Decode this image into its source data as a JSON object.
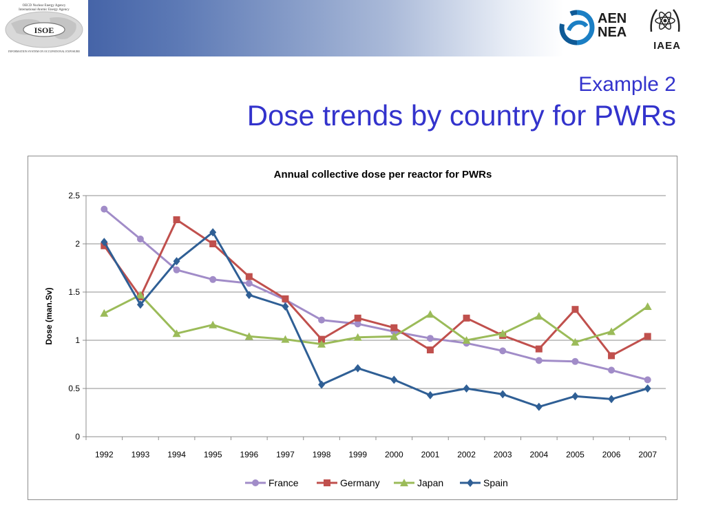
{
  "header": {
    "isoe_top_line1": "OECD Nuclear Energy Agency",
    "isoe_top_line2": "International Atomic Energy Agency",
    "isoe_name": "ISOE",
    "isoe_bottom": "INFORMATION SYSTEM ON OCCUPATIONAL EXPOSURE",
    "aen_line1": "AEN",
    "aen_line2": "NEA",
    "iaea": "IAEA",
    "banner_color": "#2f4f9a"
  },
  "slide": {
    "subtitle": "Example 2",
    "title": "Dose trends by country for PWRs",
    "title_color": "#3333cc"
  },
  "chart_data": {
    "type": "line",
    "title": "Annual collective dose per reactor for PWRs",
    "xlabel": "",
    "ylabel": "Dose (man.Sv)",
    "ylim": [
      0,
      2.5
    ],
    "yticks": [
      "0",
      "0.5",
      "1",
      "1.5",
      "2",
      "2.5"
    ],
    "grid": "horizontal",
    "legend": "bottom",
    "categories": [
      "1992",
      "1993",
      "1994",
      "1995",
      "1996",
      "1997",
      "1998",
      "1999",
      "2000",
      "2001",
      "2002",
      "2003",
      "2004",
      "2005",
      "2006",
      "2007"
    ],
    "series": [
      {
        "name": "France",
        "color": "#a18cc8",
        "marker": "circle",
        "values": [
          2.36,
          2.05,
          1.73,
          1.63,
          1.59,
          1.42,
          1.21,
          1.17,
          1.09,
          1.02,
          0.97,
          0.89,
          0.79,
          0.78,
          0.69,
          0.59
        ]
      },
      {
        "name": "Germany",
        "color": "#c0504d",
        "marker": "square",
        "values": [
          1.98,
          1.45,
          2.25,
          2.0,
          1.66,
          1.43,
          1.01,
          1.23,
          1.13,
          0.9,
          1.23,
          1.05,
          0.91,
          1.32,
          0.84,
          1.04
        ]
      },
      {
        "name": "Japan",
        "color": "#9bbb59",
        "marker": "triangle",
        "values": [
          1.28,
          1.47,
          1.07,
          1.16,
          1.04,
          1.01,
          0.96,
          1.03,
          1.04,
          1.27,
          1.0,
          1.07,
          1.25,
          0.98,
          1.09,
          1.35
        ]
      },
      {
        "name": "Spain",
        "color": "#2f5f95",
        "marker": "diamond",
        "values": [
          2.02,
          1.37,
          1.82,
          2.12,
          1.47,
          1.35,
          0.54,
          0.71,
          0.59,
          0.43,
          0.5,
          0.44,
          0.31,
          0.42,
          0.39,
          0.5
        ]
      }
    ]
  }
}
